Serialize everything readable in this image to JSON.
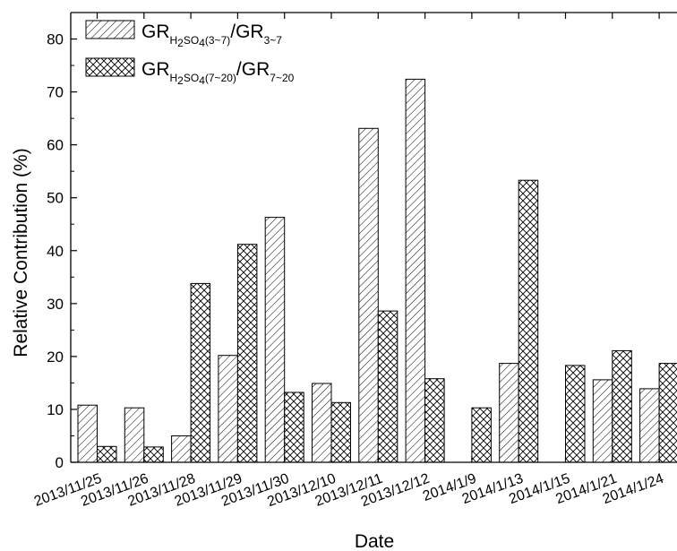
{
  "chart_data": {
    "type": "bar",
    "xlabel": "Date",
    "ylabel": "Relative Contribution (%)",
    "ylim": [
      0,
      85
    ],
    "yticks": [
      0,
      10,
      20,
      30,
      40,
      50,
      60,
      70,
      80
    ],
    "grid": false,
    "legend_position": "top-left",
    "categories": [
      "2013/11/25",
      "2013/11/26",
      "2013/11/28",
      "2013/11/29",
      "2013/11/30",
      "2013/12/10",
      "2013/12/11",
      "2013/12/12",
      "2014/1/9",
      "2014/1/13",
      "2014/1/15",
      "2014/1/21",
      "2014/1/24"
    ],
    "series": [
      {
        "name": "GRH2SO4(3~7)/GR3~7",
        "legend": {
          "main": "GR",
          "sub1": "H",
          "sub2": "2",
          "sub3": "SO",
          "sub4": "4",
          "sub5": "(3~7)",
          "mid": "/GR",
          "sub6": "3~7"
        },
        "pattern": "diagonal-hatch",
        "values": [
          10.8,
          10.3,
          5.0,
          20.2,
          46.3,
          14.9,
          63.1,
          72.4,
          null,
          18.7,
          null,
          15.6,
          13.9
        ]
      },
      {
        "name": "GRH2SO4(7~20)/GR7~20",
        "legend": {
          "main": "GR",
          "sub1": "H",
          "sub2": "2",
          "sub3": "SO",
          "sub4": "4",
          "sub5": "(7~20)",
          "mid": "/GR",
          "sub6": "7~20"
        },
        "pattern": "cross-hatch",
        "values": [
          3.0,
          2.9,
          33.8,
          41.2,
          13.2,
          11.3,
          28.6,
          15.8,
          10.3,
          53.3,
          18.3,
          21.1,
          18.7
        ]
      }
    ]
  }
}
